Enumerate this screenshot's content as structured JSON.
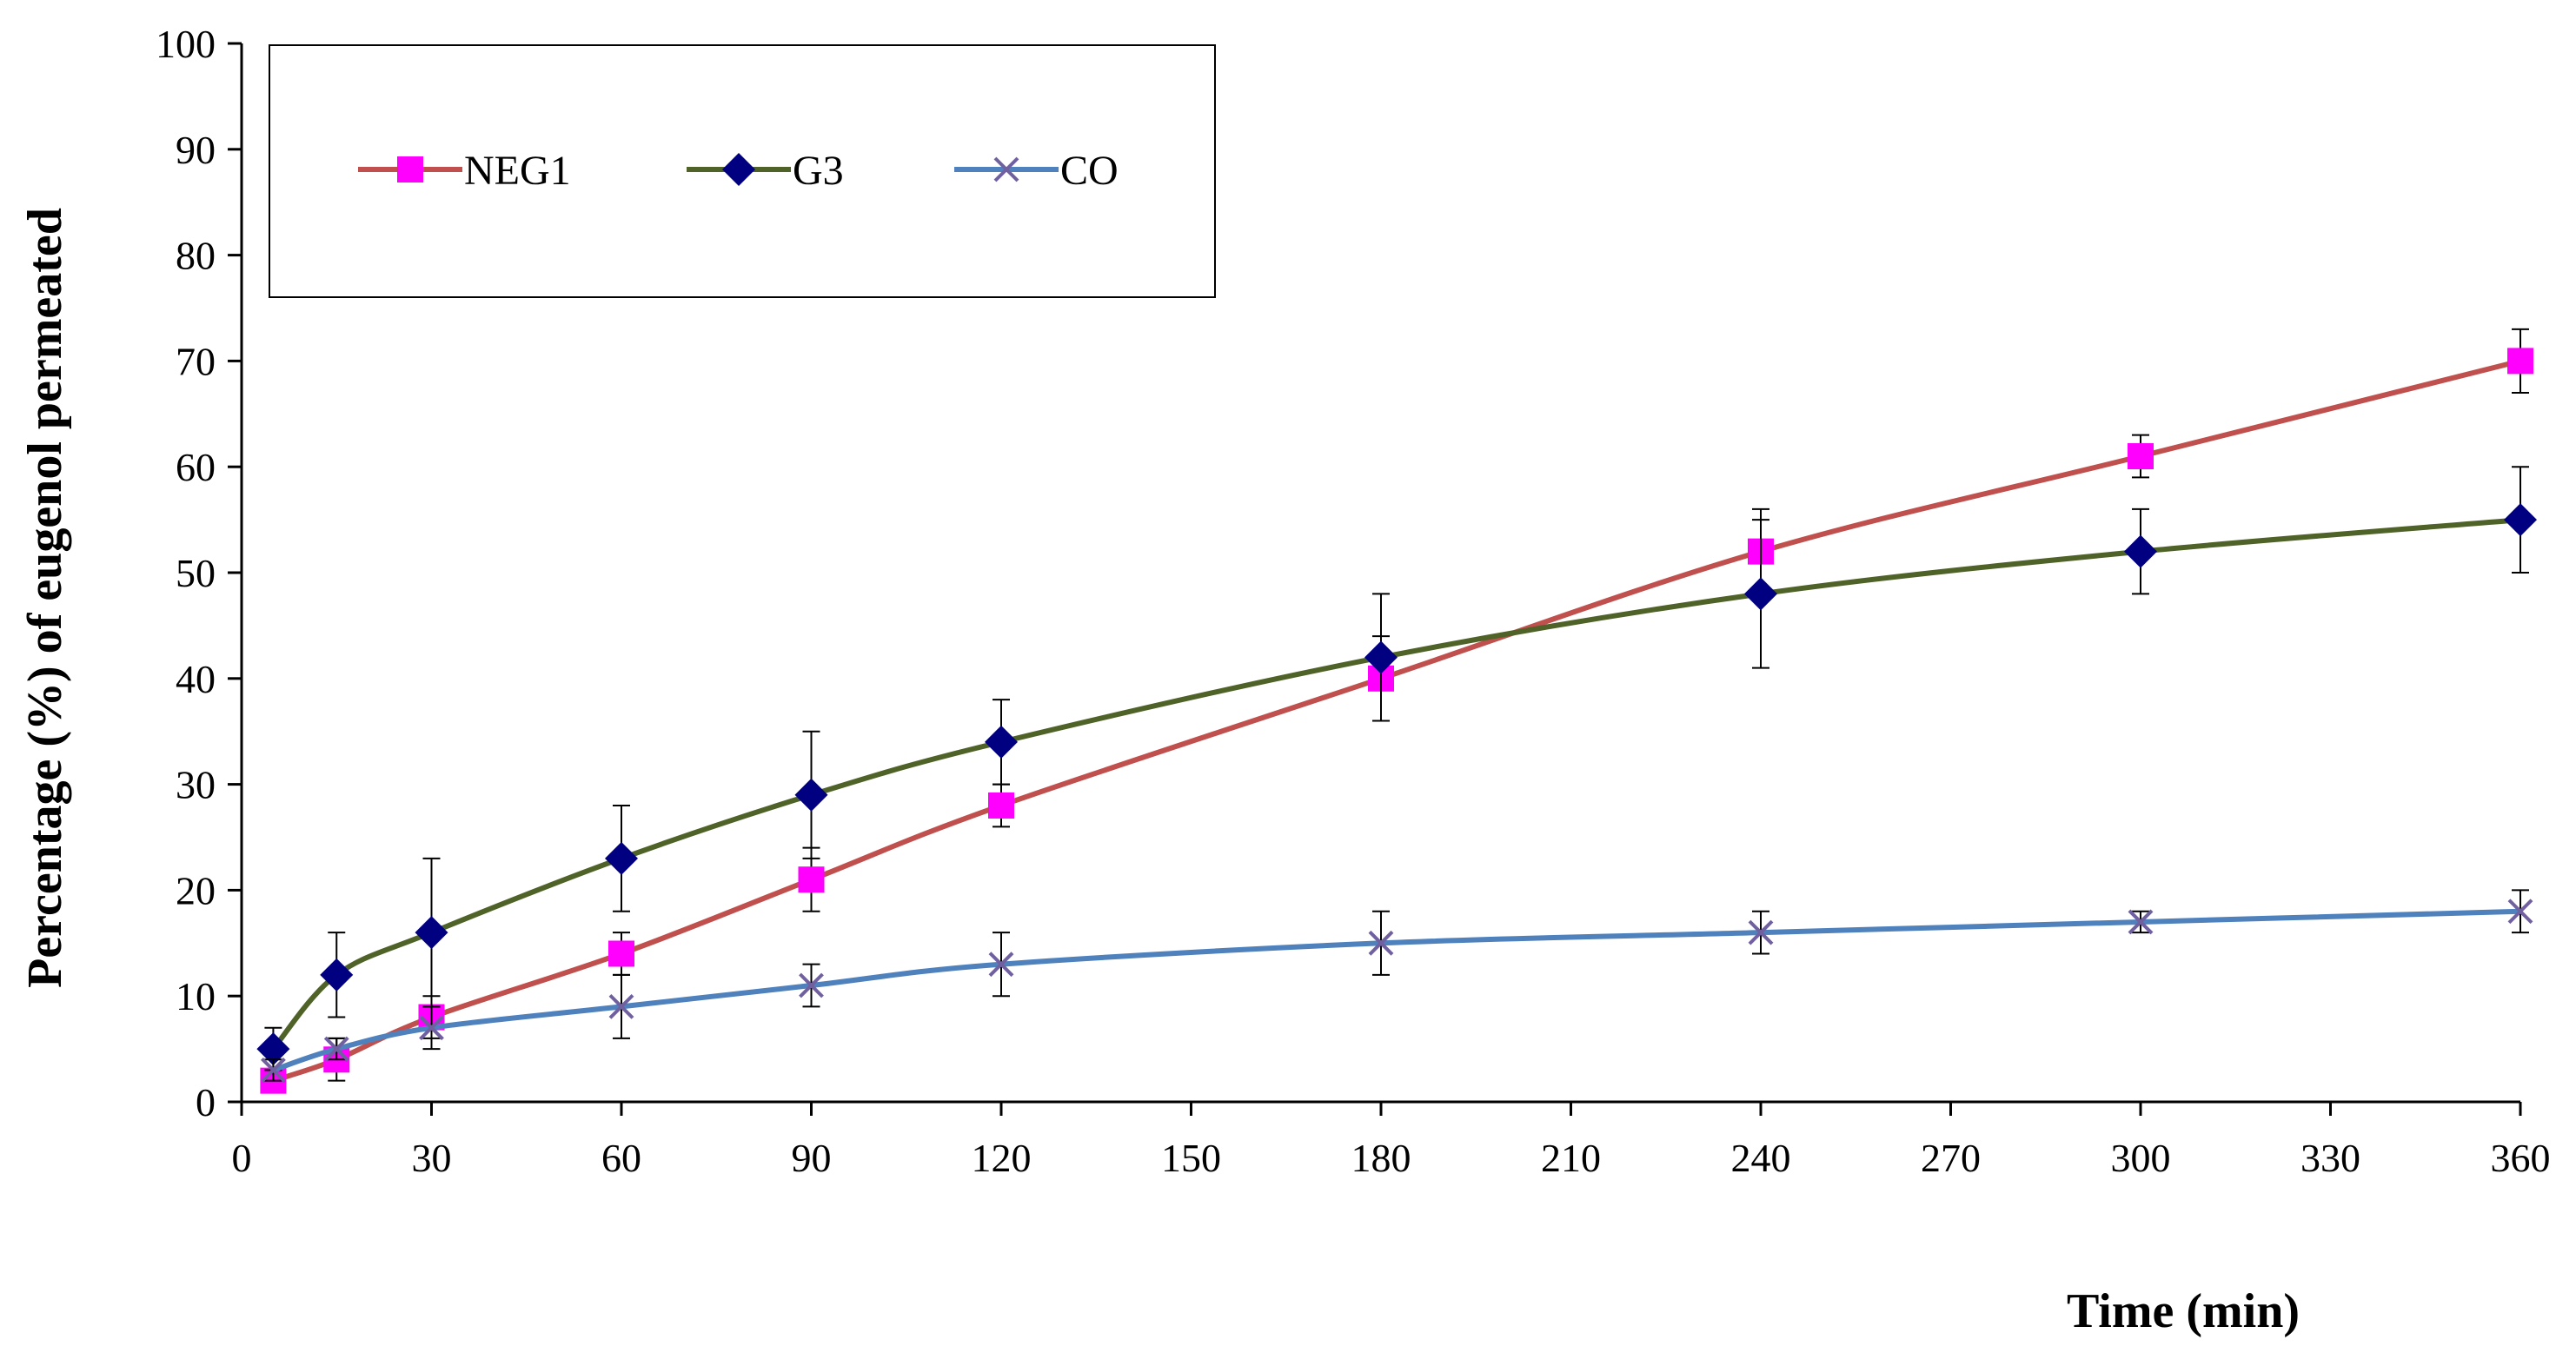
{
  "chart_data": {
    "type": "line",
    "title": "",
    "xlabel": "Time (min)",
    "ylabel": "Percentage (%) of eugenol permeated",
    "xlim": [
      0,
      360
    ],
    "ylim": [
      0,
      100
    ],
    "xticks": [
      0,
      30,
      60,
      90,
      120,
      150,
      180,
      210,
      240,
      270,
      300,
      330,
      360
    ],
    "yticks": [
      0,
      10,
      20,
      30,
      40,
      50,
      60,
      70,
      80,
      90,
      100
    ],
    "legend_position": "top-left",
    "grid": false,
    "series": [
      {
        "name": "NEG1",
        "color": "#c0504d",
        "marker": "square",
        "marker_color": "#ff00ff",
        "x": [
          5,
          15,
          30,
          60,
          90,
          120,
          180,
          240,
          300,
          360
        ],
        "y": [
          2,
          4,
          8,
          14,
          21,
          28,
          40,
          52,
          61,
          70
        ],
        "error": [
          1,
          2,
          2,
          2,
          3,
          2,
          4,
          4,
          2,
          3
        ]
      },
      {
        "name": "G3",
        "color": "#4f6228",
        "marker": "diamond",
        "marker_color": "#000080",
        "x": [
          5,
          15,
          30,
          60,
          90,
          120,
          180,
          240,
          300,
          360
        ],
        "y": [
          5,
          12,
          16,
          23,
          29,
          34,
          42,
          48,
          52,
          55
        ],
        "error": [
          2,
          4,
          7,
          5,
          6,
          4,
          6,
          7,
          4,
          5
        ]
      },
      {
        "name": "CO",
        "color": "#4f81bd",
        "marker": "x",
        "marker_color": "#7060a0",
        "x": [
          5,
          15,
          30,
          60,
          90,
          120,
          180,
          240,
          300,
          360
        ],
        "y": [
          3,
          5,
          7,
          9,
          11,
          13,
          15,
          16,
          17,
          18
        ],
        "error": [
          1,
          1,
          2,
          3,
          2,
          3,
          3,
          2,
          1,
          2
        ]
      }
    ]
  }
}
